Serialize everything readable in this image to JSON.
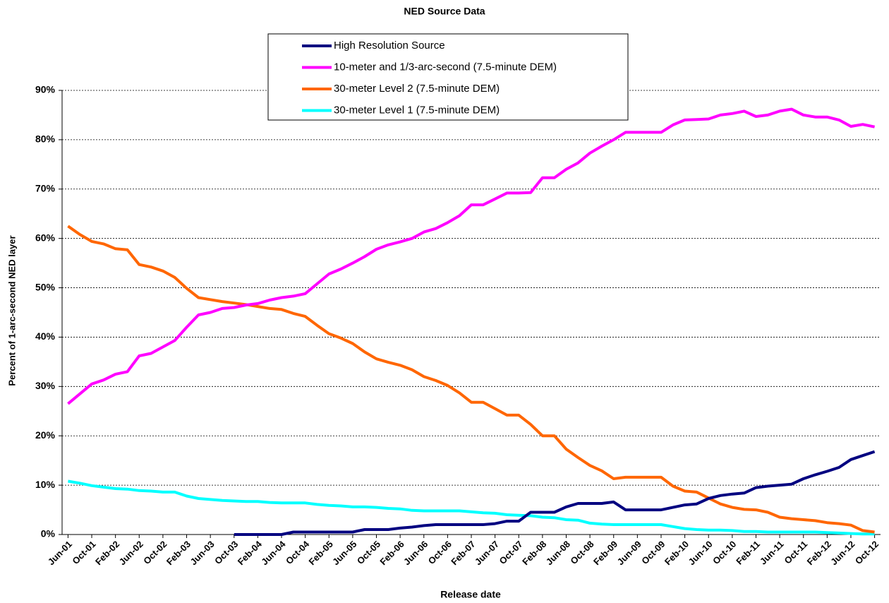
{
  "chart_data": {
    "type": "line",
    "title": "NED Source Data",
    "x_label": "Release date",
    "y_label": "Percent of 1-arc-second NED layer",
    "categories": [
      "Jun-01",
      null,
      "Oct-01",
      null,
      "Feb-02",
      null,
      "Jun-02",
      null,
      "Oct-02",
      null,
      "Feb-03",
      null,
      "Jun-03",
      null,
      "Oct-03",
      null,
      "Feb-04",
      null,
      "Jun-04",
      null,
      "Oct-04",
      null,
      "Feb-05",
      null,
      "Jun-05",
      null,
      "Oct-05",
      null,
      "Feb-06",
      null,
      "Jun-06",
      null,
      "Oct-06",
      null,
      "Feb-07",
      null,
      "Jun-07",
      null,
      "Oct-07",
      null,
      "Feb-08",
      null,
      "Jun-08",
      null,
      "Oct-08",
      null,
      "Feb-09",
      null,
      "Jun-09",
      null,
      "Oct-09",
      null,
      "Feb-10",
      null,
      "Jun-10",
      null,
      "Oct-10",
      null,
      "Feb-11",
      null,
      "Jun-11",
      null,
      "Oct-11",
      null,
      "Feb-12",
      null,
      "Jun-12",
      null,
      "Oct-12"
    ],
    "series": [
      {
        "name": "High Resolution Source",
        "color": "#000080",
        "values": [
          null,
          null,
          null,
          null,
          null,
          null,
          null,
          null,
          null,
          null,
          null,
          null,
          null,
          null,
          0,
          0,
          0,
          0,
          0,
          0.5,
          0.5,
          0.5,
          0.5,
          0.5,
          0.5,
          1,
          1,
          1,
          1.3,
          1.5,
          1.8,
          2,
          2,
          2,
          2,
          2,
          2.2,
          2.7,
          2.7,
          4.5,
          4.5,
          4.5,
          5.6,
          6.3,
          6.3,
          6.3,
          6.6,
          5,
          5,
          5,
          5,
          5.5,
          6,
          6.2,
          7.3,
          7.9,
          8.2,
          8.4,
          9.5,
          9.8,
          10,
          10.2,
          11.3,
          12.1,
          12.8,
          13.6,
          15.2,
          16,
          16.8
        ]
      },
      {
        "name": "10-meter and 1/3-arc-second (7.5-minute DEM)",
        "color": "#ff00ff",
        "values": [
          26.5,
          28.5,
          30.5,
          31.3,
          32.5,
          33,
          36.2,
          36.7,
          38,
          39.3,
          42,
          44.5,
          45,
          45.8,
          46,
          46.5,
          46.8,
          47.5,
          48,
          48.3,
          48.8,
          50.8,
          52.8,
          53.8,
          55,
          56.3,
          57.8,
          58.7,
          59.3,
          60,
          61.3,
          62,
          63.2,
          64.6,
          66.8,
          66.8,
          68,
          69.2,
          69.2,
          69.3,
          72.3,
          72.3,
          74,
          75.3,
          77.3,
          78.7,
          80,
          81.5,
          81.5,
          81.5,
          81.5,
          83,
          84,
          84.1,
          84.2,
          85,
          85.3,
          85.8,
          84.7,
          85,
          85.8,
          86.2,
          85,
          84.6,
          84.6,
          84,
          82.7,
          83.1,
          82.6
        ]
      },
      {
        "name": "30-meter Level 2 (7.5-minute DEM)",
        "color": "#ff6600",
        "values": [
          62.5,
          60.8,
          59.4,
          58.9,
          57.9,
          57.7,
          54.7,
          54.2,
          53.4,
          52.1,
          49.9,
          48,
          47.6,
          47.2,
          46.9,
          46.6,
          46.2,
          45.8,
          45.6,
          44.8,
          44.2,
          42.4,
          40.7,
          39.8,
          38.7,
          37,
          35.6,
          34.9,
          34.3,
          33.4,
          32,
          31.2,
          30.2,
          28.7,
          26.8,
          26.8,
          25.5,
          24.2,
          24.2,
          22.3,
          20,
          20,
          17.3,
          15.6,
          14,
          12.9,
          11.3,
          11.6,
          11.6,
          11.6,
          11.6,
          9.8,
          8.8,
          8.6,
          7.4,
          6.2,
          5.5,
          5.1,
          5,
          4.5,
          3.5,
          3.2,
          3,
          2.8,
          2.4,
          2.2,
          1.9,
          0.8,
          0.5
        ]
      },
      {
        "name": "30-meter Level 1 (7.5-minute DEM)",
        "color": "#00ffff",
        "values": [
          10.8,
          10.4,
          9.9,
          9.6,
          9.3,
          9.2,
          8.9,
          8.8,
          8.6,
          8.6,
          7.8,
          7.3,
          7.1,
          6.9,
          6.8,
          6.7,
          6.7,
          6.5,
          6.4,
          6.4,
          6.4,
          6.1,
          5.9,
          5.8,
          5.6,
          5.6,
          5.5,
          5.3,
          5.2,
          4.9,
          4.8,
          4.8,
          4.8,
          4.8,
          4.6,
          4.4,
          4.3,
          4,
          3.9,
          3.8,
          3.5,
          3.4,
          3,
          2.9,
          2.3,
          2.1,
          2,
          2,
          2,
          2,
          2,
          1.6,
          1.2,
          1,
          0.9,
          0.9,
          0.8,
          0.6,
          0.6,
          0.5,
          0.5,
          0.5,
          0.5,
          0.5,
          0.4,
          0.3,
          0.2,
          0.1,
          0.1
        ]
      }
    ],
    "ylim": [
      0,
      90
    ],
    "yticks": [
      {
        "value": 0,
        "label": "0%"
      },
      {
        "value": 10,
        "label": "10%"
      },
      {
        "value": 20,
        "label": "20%"
      },
      {
        "value": 30,
        "label": "30%"
      },
      {
        "value": 40,
        "label": "40%"
      },
      {
        "value": 50,
        "label": "50%"
      },
      {
        "value": 60,
        "label": "60%"
      },
      {
        "value": 70,
        "label": "70%"
      },
      {
        "value": 80,
        "label": "80%"
      },
      {
        "value": 90,
        "label": "90%"
      }
    ],
    "grid": true
  }
}
